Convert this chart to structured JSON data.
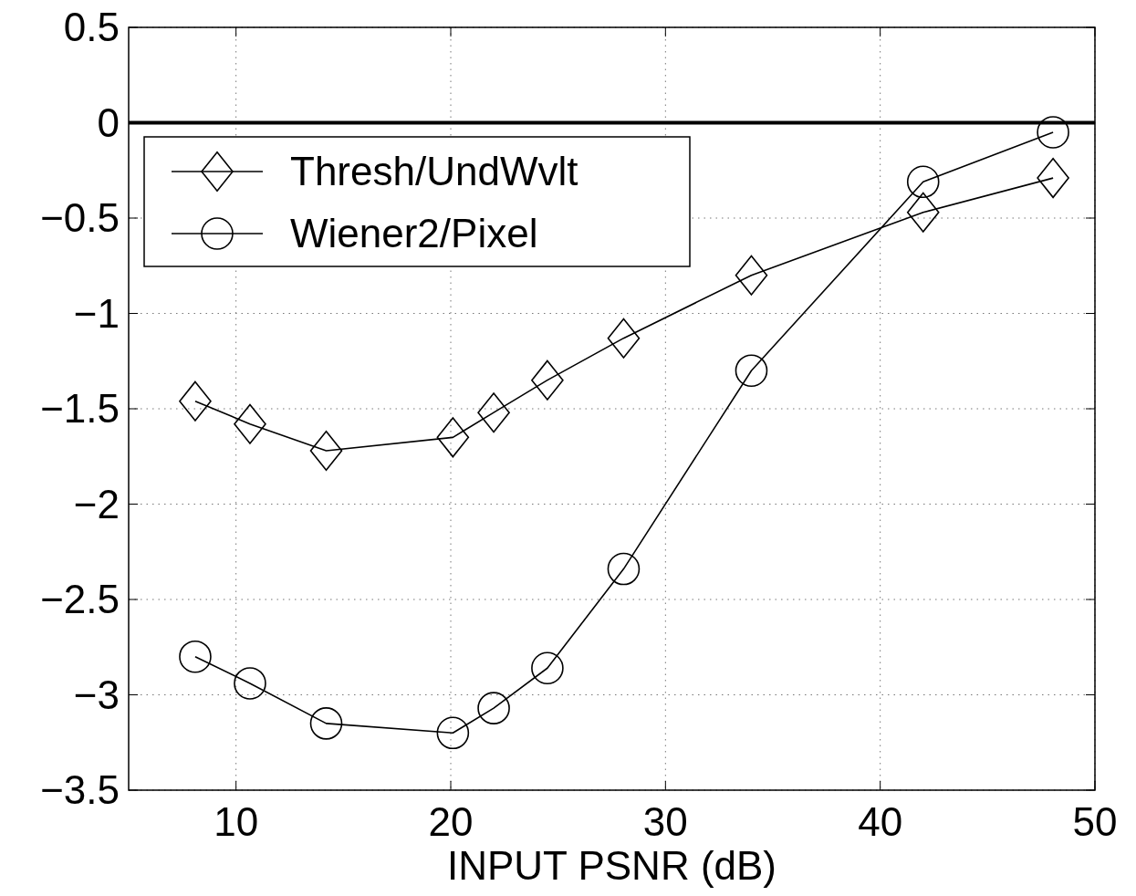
{
  "chart_data": {
    "type": "line",
    "xlabel": "INPUT PSNR (dB)",
    "xlim": [
      5,
      50
    ],
    "xticks": [
      10,
      20,
      30,
      40,
      50
    ],
    "ylim": [
      -3.5,
      0.5
    ],
    "yticks": [
      -3.5,
      -3,
      -2.5,
      -2,
      -1.5,
      -1,
      -0.5,
      0,
      0.5
    ],
    "grid": true,
    "legend": "top left",
    "line_style": "solid",
    "x": [
      8.1,
      10.65,
      14.2,
      20.1,
      22.0,
      24.5,
      28.05,
      34.0,
      42.0,
      48.05
    ],
    "series": [
      {
        "name": "Thresh/UndWvlt",
        "color": "#000000",
        "marker": "diamond",
        "values": [
          -1.46,
          -1.58,
          -1.72,
          -1.65,
          -1.52,
          -1.35,
          -1.13,
          -0.8,
          -0.47,
          -0.29
        ]
      },
      {
        "name": "Wiener2/Pixel",
        "color": "#000000",
        "marker": "circle",
        "values": [
          -2.8,
          -2.94,
          -3.15,
          -3.2,
          -3.07,
          -2.86,
          -2.34,
          -1.3,
          -0.31,
          -0.05
        ]
      }
    ],
    "ref_lines": [
      {
        "axis": "y",
        "value": 0,
        "color": "#000000",
        "line_style": "solid"
      }
    ]
  }
}
